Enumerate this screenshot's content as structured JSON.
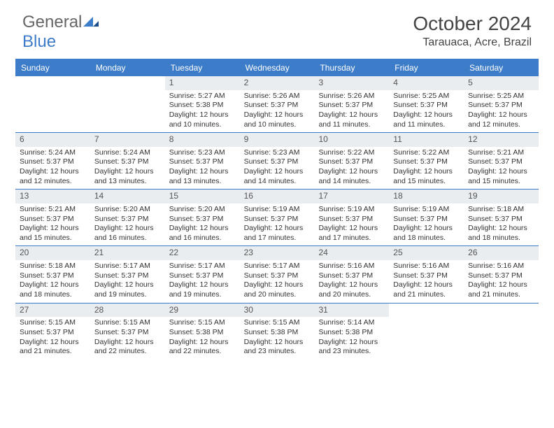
{
  "logo": {
    "part1": "General",
    "part2": "Blue"
  },
  "title": "October 2024",
  "location": "Tarauaca, Acre, Brazil",
  "day_headers": [
    "Sunday",
    "Monday",
    "Tuesday",
    "Wednesday",
    "Thursday",
    "Friday",
    "Saturday"
  ],
  "colors": {
    "accent": "#3d7cc9",
    "daynum_bg": "#e9edf0",
    "text": "#333333",
    "logo_gray": "#666666"
  },
  "weeks": [
    [
      {
        "day": "",
        "sunrise": "",
        "sunset": "",
        "daylight1": "",
        "daylight2": ""
      },
      {
        "day": "",
        "sunrise": "",
        "sunset": "",
        "daylight1": "",
        "daylight2": ""
      },
      {
        "day": "1",
        "sunrise": "Sunrise: 5:27 AM",
        "sunset": "Sunset: 5:38 PM",
        "daylight1": "Daylight: 12 hours",
        "daylight2": "and 10 minutes."
      },
      {
        "day": "2",
        "sunrise": "Sunrise: 5:26 AM",
        "sunset": "Sunset: 5:37 PM",
        "daylight1": "Daylight: 12 hours",
        "daylight2": "and 10 minutes."
      },
      {
        "day": "3",
        "sunrise": "Sunrise: 5:26 AM",
        "sunset": "Sunset: 5:37 PM",
        "daylight1": "Daylight: 12 hours",
        "daylight2": "and 11 minutes."
      },
      {
        "day": "4",
        "sunrise": "Sunrise: 5:25 AM",
        "sunset": "Sunset: 5:37 PM",
        "daylight1": "Daylight: 12 hours",
        "daylight2": "and 11 minutes."
      },
      {
        "day": "5",
        "sunrise": "Sunrise: 5:25 AM",
        "sunset": "Sunset: 5:37 PM",
        "daylight1": "Daylight: 12 hours",
        "daylight2": "and 12 minutes."
      }
    ],
    [
      {
        "day": "6",
        "sunrise": "Sunrise: 5:24 AM",
        "sunset": "Sunset: 5:37 PM",
        "daylight1": "Daylight: 12 hours",
        "daylight2": "and 12 minutes."
      },
      {
        "day": "7",
        "sunrise": "Sunrise: 5:24 AM",
        "sunset": "Sunset: 5:37 PM",
        "daylight1": "Daylight: 12 hours",
        "daylight2": "and 13 minutes."
      },
      {
        "day": "8",
        "sunrise": "Sunrise: 5:23 AM",
        "sunset": "Sunset: 5:37 PM",
        "daylight1": "Daylight: 12 hours",
        "daylight2": "and 13 minutes."
      },
      {
        "day": "9",
        "sunrise": "Sunrise: 5:23 AM",
        "sunset": "Sunset: 5:37 PM",
        "daylight1": "Daylight: 12 hours",
        "daylight2": "and 14 minutes."
      },
      {
        "day": "10",
        "sunrise": "Sunrise: 5:22 AM",
        "sunset": "Sunset: 5:37 PM",
        "daylight1": "Daylight: 12 hours",
        "daylight2": "and 14 minutes."
      },
      {
        "day": "11",
        "sunrise": "Sunrise: 5:22 AM",
        "sunset": "Sunset: 5:37 PM",
        "daylight1": "Daylight: 12 hours",
        "daylight2": "and 15 minutes."
      },
      {
        "day": "12",
        "sunrise": "Sunrise: 5:21 AM",
        "sunset": "Sunset: 5:37 PM",
        "daylight1": "Daylight: 12 hours",
        "daylight2": "and 15 minutes."
      }
    ],
    [
      {
        "day": "13",
        "sunrise": "Sunrise: 5:21 AM",
        "sunset": "Sunset: 5:37 PM",
        "daylight1": "Daylight: 12 hours",
        "daylight2": "and 15 minutes."
      },
      {
        "day": "14",
        "sunrise": "Sunrise: 5:20 AM",
        "sunset": "Sunset: 5:37 PM",
        "daylight1": "Daylight: 12 hours",
        "daylight2": "and 16 minutes."
      },
      {
        "day": "15",
        "sunrise": "Sunrise: 5:20 AM",
        "sunset": "Sunset: 5:37 PM",
        "daylight1": "Daylight: 12 hours",
        "daylight2": "and 16 minutes."
      },
      {
        "day": "16",
        "sunrise": "Sunrise: 5:19 AM",
        "sunset": "Sunset: 5:37 PM",
        "daylight1": "Daylight: 12 hours",
        "daylight2": "and 17 minutes."
      },
      {
        "day": "17",
        "sunrise": "Sunrise: 5:19 AM",
        "sunset": "Sunset: 5:37 PM",
        "daylight1": "Daylight: 12 hours",
        "daylight2": "and 17 minutes."
      },
      {
        "day": "18",
        "sunrise": "Sunrise: 5:19 AM",
        "sunset": "Sunset: 5:37 PM",
        "daylight1": "Daylight: 12 hours",
        "daylight2": "and 18 minutes."
      },
      {
        "day": "19",
        "sunrise": "Sunrise: 5:18 AM",
        "sunset": "Sunset: 5:37 PM",
        "daylight1": "Daylight: 12 hours",
        "daylight2": "and 18 minutes."
      }
    ],
    [
      {
        "day": "20",
        "sunrise": "Sunrise: 5:18 AM",
        "sunset": "Sunset: 5:37 PM",
        "daylight1": "Daylight: 12 hours",
        "daylight2": "and 18 minutes."
      },
      {
        "day": "21",
        "sunrise": "Sunrise: 5:17 AM",
        "sunset": "Sunset: 5:37 PM",
        "daylight1": "Daylight: 12 hours",
        "daylight2": "and 19 minutes."
      },
      {
        "day": "22",
        "sunrise": "Sunrise: 5:17 AM",
        "sunset": "Sunset: 5:37 PM",
        "daylight1": "Daylight: 12 hours",
        "daylight2": "and 19 minutes."
      },
      {
        "day": "23",
        "sunrise": "Sunrise: 5:17 AM",
        "sunset": "Sunset: 5:37 PM",
        "daylight1": "Daylight: 12 hours",
        "daylight2": "and 20 minutes."
      },
      {
        "day": "24",
        "sunrise": "Sunrise: 5:16 AM",
        "sunset": "Sunset: 5:37 PM",
        "daylight1": "Daylight: 12 hours",
        "daylight2": "and 20 minutes."
      },
      {
        "day": "25",
        "sunrise": "Sunrise: 5:16 AM",
        "sunset": "Sunset: 5:37 PM",
        "daylight1": "Daylight: 12 hours",
        "daylight2": "and 21 minutes."
      },
      {
        "day": "26",
        "sunrise": "Sunrise: 5:16 AM",
        "sunset": "Sunset: 5:37 PM",
        "daylight1": "Daylight: 12 hours",
        "daylight2": "and 21 minutes."
      }
    ],
    [
      {
        "day": "27",
        "sunrise": "Sunrise: 5:15 AM",
        "sunset": "Sunset: 5:37 PM",
        "daylight1": "Daylight: 12 hours",
        "daylight2": "and 21 minutes."
      },
      {
        "day": "28",
        "sunrise": "Sunrise: 5:15 AM",
        "sunset": "Sunset: 5:37 PM",
        "daylight1": "Daylight: 12 hours",
        "daylight2": "and 22 minutes."
      },
      {
        "day": "29",
        "sunrise": "Sunrise: 5:15 AM",
        "sunset": "Sunset: 5:38 PM",
        "daylight1": "Daylight: 12 hours",
        "daylight2": "and 22 minutes."
      },
      {
        "day": "30",
        "sunrise": "Sunrise: 5:15 AM",
        "sunset": "Sunset: 5:38 PM",
        "daylight1": "Daylight: 12 hours",
        "daylight2": "and 23 minutes."
      },
      {
        "day": "31",
        "sunrise": "Sunrise: 5:14 AM",
        "sunset": "Sunset: 5:38 PM",
        "daylight1": "Daylight: 12 hours",
        "daylight2": "and 23 minutes."
      },
      {
        "day": "",
        "sunrise": "",
        "sunset": "",
        "daylight1": "",
        "daylight2": ""
      },
      {
        "day": "",
        "sunrise": "",
        "sunset": "",
        "daylight1": "",
        "daylight2": ""
      }
    ]
  ]
}
